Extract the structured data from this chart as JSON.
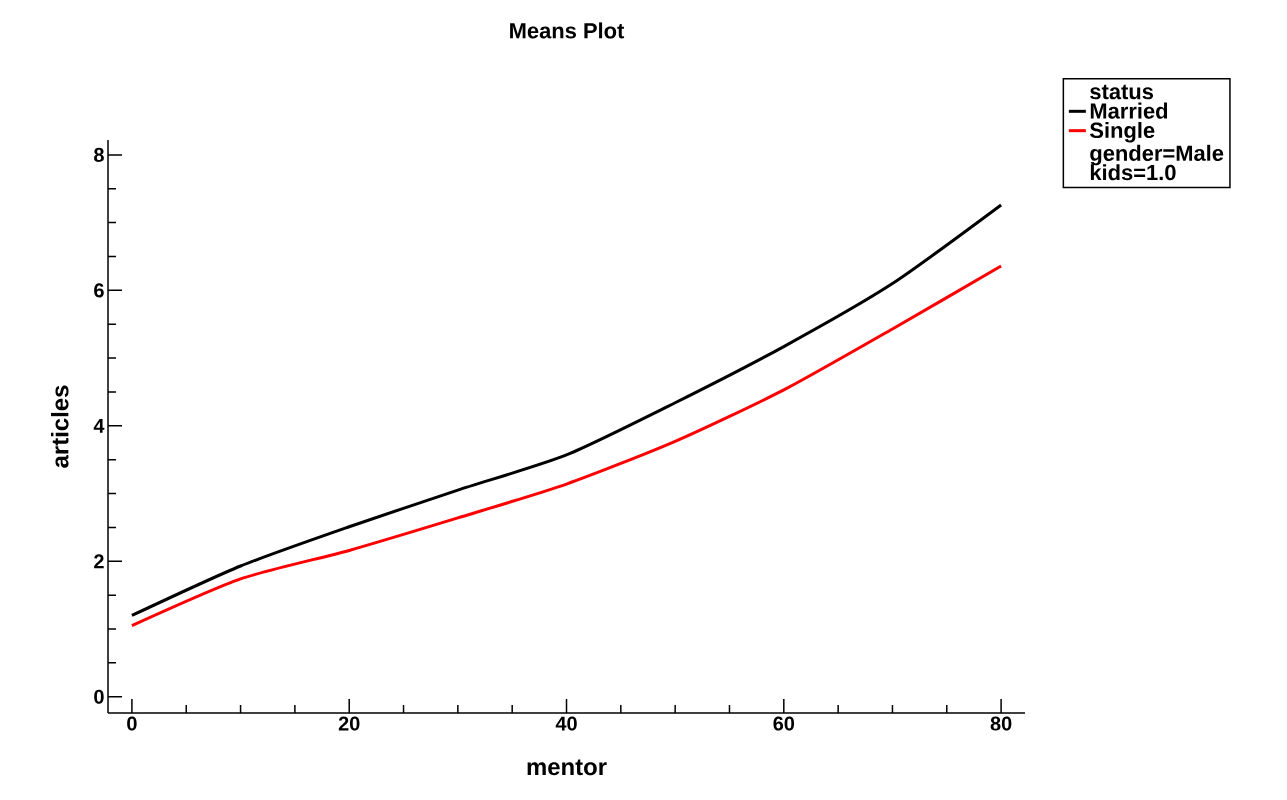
{
  "chart_data": {
    "type": "line",
    "title": "Means Plot",
    "xlabel": "mentor",
    "ylabel": "articles",
    "legend_title": "status",
    "x": [
      0,
      10,
      20,
      30,
      40,
      50,
      60,
      70,
      80
    ],
    "series": [
      {
        "name": "Married",
        "color": "#000000",
        "values": [
          1.2,
          1.93,
          2.51,
          3.05,
          3.57,
          4.34,
          5.17,
          6.1,
          7.26
        ]
      },
      {
        "name": "Single",
        "color": "#ff0000",
        "values": [
          1.05,
          1.74,
          2.16,
          2.64,
          3.14,
          3.77,
          4.53,
          5.43,
          6.36
        ]
      }
    ],
    "xlim": [
      -2.2,
      82.2
    ],
    "ylim": [
      -0.24,
      8.22
    ],
    "xticks": [
      0,
      20,
      40,
      60,
      80
    ],
    "yticks": [
      0,
      2,
      4,
      6,
      8
    ],
    "legend": "top right",
    "grid": false,
    "marker": "none",
    "line_style": "solid",
    "annotations": [
      "gender=Male",
      "kids=1.0"
    ]
  }
}
